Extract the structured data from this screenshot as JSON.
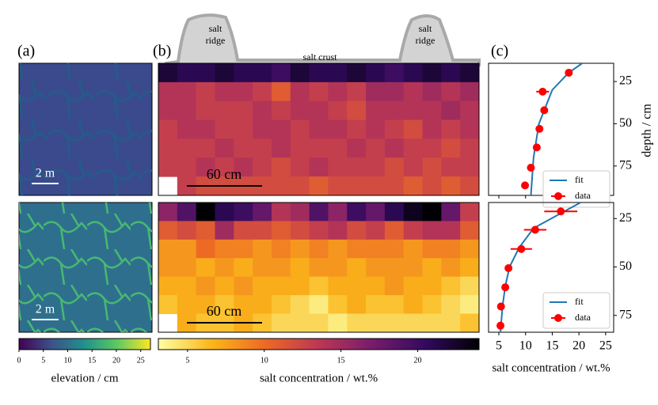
{
  "chart_data": [
    {
      "type": "image",
      "panel_label": "(a)",
      "scale_bar_labels": [
        "2 m",
        "2 m"
      ],
      "colorbar": {
        "label": "elevation / cm",
        "lim": [
          0,
          27
        ],
        "ticks": [
          0,
          5,
          10,
          15,
          20,
          25
        ],
        "colormap": [
          "#440154",
          "#3b528b",
          "#21918c",
          "#5ec962",
          "#fde725"
        ]
      }
    },
    {
      "type": "heatmap",
      "panel_label": "(b)",
      "annotations": [
        [
          "salt",
          "ridge"
        ],
        "salt crust",
        [
          "salt",
          "ridge"
        ]
      ],
      "maps": [
        {
          "scale_bar": "60 cm",
          "values": [
            [
              22,
              21,
              21,
              22,
              21,
              21,
              20,
              22,
              21,
              21,
              22,
              21,
              20,
              21,
              22,
              21,
              22
            ],
            [
              14,
              14,
              13,
              14,
              14,
              13,
              11,
              14,
              13,
              14,
              13,
              15,
              15,
              14,
              15,
              14,
              15
            ],
            [
              14,
              14,
              13,
              13,
              13,
              14,
              13,
              14,
              14,
              13,
              12,
              14,
              14,
              14,
              14,
              15,
              14
            ],
            [
              13,
              14,
              14,
              13,
              13,
              14,
              14,
              13,
              14,
              14,
              13,
              14,
              13,
              12,
              14,
              13,
              14
            ],
            [
              13,
              13,
              13,
              14,
              13,
              13,
              14,
              13,
              13,
              13,
              14,
              13,
              14,
              13,
              13,
              12,
              13
            ],
            [
              13,
              13,
              14,
              13,
              14,
              13,
              12,
              13,
              14,
              13,
              13,
              13,
              12,
              13,
              12,
              13,
              13
            ],
            [
              null,
              13,
              12,
              12,
              12,
              12,
              12,
              12,
              11,
              12,
              12,
              12,
              12,
              11,
              12,
              11,
              12
            ]
          ]
        },
        {
          "scale_bar": "60 cm",
          "values": [
            [
              16,
              19,
              24,
              21,
              20,
              18,
              14,
              15,
              19,
              16,
              20,
              18,
              21,
              23,
              24,
              18,
              13
            ],
            [
              11,
              12,
              11,
              15,
              12,
              12,
              11,
              12,
              13,
              14,
              12,
              13,
              11,
              13,
              14,
              14,
              11
            ],
            [
              8,
              8,
              10,
              9,
              9,
              8,
              9,
              8,
              9,
              8,
              9,
              9,
              9,
              8,
              9,
              9,
              8
            ],
            [
              8,
              8,
              7,
              8,
              7,
              8,
              8,
              7,
              8,
              8,
              7,
              8,
              8,
              8,
              7,
              8,
              7
            ],
            [
              7,
              7,
              8,
              7,
              8,
              7,
              7,
              7,
              6,
              7,
              7,
              7,
              8,
              7,
              7,
              6,
              5
            ],
            [
              6,
              7,
              7,
              6,
              7,
              7,
              6,
              5,
              4,
              6,
              7,
              6,
              6,
              7,
              6,
              5,
              4
            ],
            [
              null,
              7,
              6,
              6,
              7,
              6,
              5,
              5,
              5,
              4,
              5,
              5,
              5,
              5,
              5,
              5,
              6
            ]
          ]
        }
      ],
      "colorbar": {
        "label": "salt concentration / wt.%",
        "lim": [
          3.1,
          24
        ],
        "ticks": [
          5,
          10,
          15,
          20
        ],
        "colormap": [
          "#fcffa4",
          "#fbb61a",
          "#ed6925",
          "#bc3754",
          "#781c6d",
          "#320a5e",
          "#000004"
        ]
      }
    },
    {
      "type": "scatter",
      "panel_label": "(c)",
      "xlabel": "salt concentration / wt.%",
      "ylabel": "depth / cm",
      "xlim": [
        3.07,
        26.5
      ],
      "xticks": [
        5,
        10,
        15,
        20,
        25
      ],
      "y_inverted": true,
      "legend": "lower right",
      "series_names": [
        "fit",
        "data"
      ],
      "colors": [
        "#1f77b4",
        "#ff0000"
      ],
      "plots": [
        {
          "ylim": [
            14.2,
            92.4
          ],
          "yticks": [
            25,
            50,
            75
          ],
          "fit": {
            "x": [
              20.6,
              18,
              15,
              12.5,
              11.5,
              11
            ],
            "y": [
              14.2,
              20,
              30,
              50,
              70,
              92.4
            ]
          },
          "data": {
            "x": [
              18.1,
              13.2,
              13.5,
              12.6,
              12.1,
              11,
              9.9
            ],
            "y": [
              19.8,
              31,
              42,
              53,
              64,
              76,
              86.5
            ],
            "xerr": [
              0.5,
              1.2,
              0.4,
              0.4,
              0.4,
              0.4,
              0.4
            ]
          }
        },
        {
          "ylim": [
            16.7,
            83.7
          ],
          "yticks": [
            25,
            50,
            75
          ],
          "fit": {
            "x": [
              20.3,
              11.5,
              8.8,
              7,
              6.2,
              5.7,
              5.3
            ],
            "y": [
              16.7,
              30,
              40,
              50,
              60,
              70,
              83.7
            ]
          },
          "data": {
            "x": [
              16.6,
              11.8,
              9.2,
              6.8,
              6.2,
              5.4,
              5.3
            ],
            "y": [
              21.3,
              30.8,
              40.7,
              50.6,
              60.5,
              70.4,
              80.3
            ],
            "xerr": [
              3.1,
              2.1,
              2,
              0.5,
              0.5,
              0.5,
              0.5
            ]
          }
        }
      ]
    }
  ]
}
